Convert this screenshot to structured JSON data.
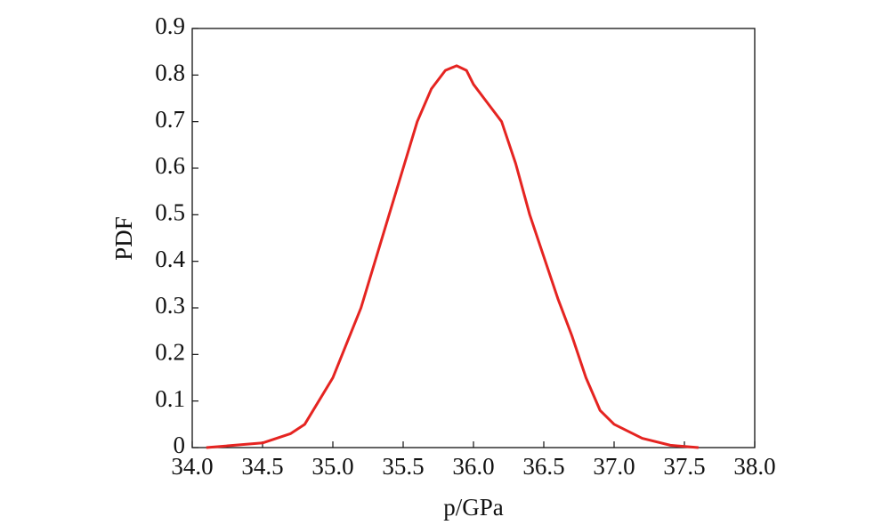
{
  "chart_data": {
    "type": "line",
    "xlabel": "p/GPa",
    "ylabel": "PDF",
    "x": [
      34.1,
      34.5,
      34.7,
      34.8,
      35.0,
      35.2,
      35.4,
      35.5,
      35.6,
      35.7,
      35.8,
      35.88,
      35.95,
      36.0,
      36.1,
      36.2,
      36.3,
      36.4,
      36.5,
      36.6,
      36.7,
      36.8,
      36.9,
      37.0,
      37.2,
      37.4,
      37.6
    ],
    "series": [
      {
        "color": "#e52421",
        "values": [
          0,
          0.01,
          0.03,
          0.05,
          0.15,
          0.3,
          0.5,
          0.6,
          0.7,
          0.77,
          0.81,
          0.82,
          0.81,
          0.78,
          0.74,
          0.7,
          0.61,
          0.5,
          0.41,
          0.32,
          0.24,
          0.15,
          0.08,
          0.05,
          0.02,
          0.005,
          0
        ]
      }
    ],
    "xlim": [
      34,
      38
    ],
    "xticks": [
      {
        "value": 34,
        "label": "34.0"
      },
      34.5,
      {
        "value": 35,
        "label": "35.0"
      },
      35.5,
      {
        "value": 36,
        "label": "36.0"
      },
      36.5,
      {
        "value": 37,
        "label": "37.0"
      },
      37.5,
      {
        "value": 38,
        "label": "38.0"
      }
    ],
    "ylim": [
      0,
      0.9
    ],
    "yticks": [
      0,
      0.1,
      0.2,
      0.3,
      0.4,
      0.5,
      0.6,
      0.7,
      0.8,
      0.9
    ]
  }
}
